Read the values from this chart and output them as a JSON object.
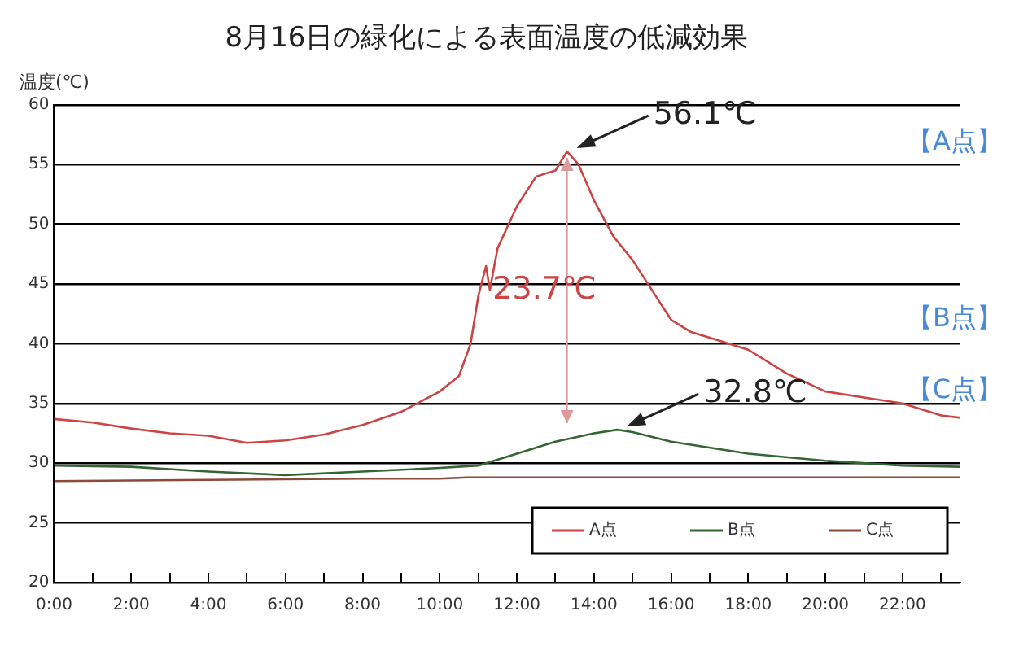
{
  "chart_data": {
    "type": "line",
    "title": "8月16日の緑化による表面温度の低減効果",
    "ylabel": "温度(℃)",
    "xlim": [
      0,
      23.5
    ],
    "xticks": [
      {
        "value": 0,
        "label": "0:00"
      },
      {
        "value": 1,
        "label": null
      },
      {
        "value": 2,
        "label": "2:00"
      },
      {
        "value": 3,
        "label": null
      },
      {
        "value": 4,
        "label": "4:00"
      },
      {
        "value": 5,
        "label": null
      },
      {
        "value": 6,
        "label": "6:00"
      },
      {
        "value": 7,
        "label": null
      },
      {
        "value": 8,
        "label": "8:00"
      },
      {
        "value": 9,
        "label": null
      },
      {
        "value": 10,
        "label": "10:00"
      },
      {
        "value": 11,
        "label": null
      },
      {
        "value": 12,
        "label": "12:00"
      },
      {
        "value": 13,
        "label": null
      },
      {
        "value": 14,
        "label": "14:00"
      },
      {
        "value": 15,
        "label": null
      },
      {
        "value": 16,
        "label": "16:00"
      },
      {
        "value": 17,
        "label": null
      },
      {
        "value": 18,
        "label": "18:00"
      },
      {
        "value": 19,
        "label": null
      },
      {
        "value": 20,
        "label": "20:00"
      },
      {
        "value": 21,
        "label": null
      },
      {
        "value": 22,
        "label": "22:00"
      },
      {
        "value": 23,
        "label": null
      }
    ],
    "ylim": [
      20,
      60
    ],
    "yticks": [
      20,
      25,
      30,
      35,
      40,
      45,
      50,
      55,
      60
    ],
    "grid": "y",
    "legend": "bottom right",
    "marker": "none",
    "series": [
      {
        "name": "A点",
        "color": "#cc4444",
        "x": [
          0,
          1,
          2,
          3,
          4,
          5,
          6,
          7,
          8,
          9,
          10,
          10.5,
          10.8,
          11,
          11.2,
          11.3,
          11.5,
          12,
          12.5,
          13,
          13.3,
          13.6,
          14,
          14.5,
          15,
          15.5,
          16,
          16.5,
          17,
          18,
          19,
          20,
          21,
          22,
          23,
          23.5
        ],
        "values": [
          33.7,
          33.4,
          32.9,
          32.5,
          32.3,
          31.7,
          31.9,
          32.4,
          33.2,
          34.3,
          36,
          37.3,
          40,
          44,
          46.5,
          44.5,
          48,
          51.5,
          54,
          54.5,
          56.1,
          55,
          52,
          49,
          47,
          44.5,
          42,
          41,
          40.5,
          39.5,
          37.5,
          36,
          35.5,
          35,
          34,
          33.8
        ]
      },
      {
        "name": "B点",
        "color": "#336633",
        "x": [
          0,
          2,
          4,
          6,
          8,
          10,
          11,
          12,
          13,
          14,
          14.6,
          15,
          16,
          18,
          20,
          22,
          23.5
        ],
        "values": [
          29.8,
          29.7,
          29.3,
          29,
          29.3,
          29.6,
          29.8,
          30.8,
          31.8,
          32.5,
          32.8,
          32.6,
          31.8,
          30.8,
          30.2,
          29.8,
          29.7
        ]
      },
      {
        "name": "C点",
        "color": "#8b4a3a",
        "x": [
          0,
          4,
          8,
          10,
          10.7,
          12,
          16,
          20,
          23.5
        ],
        "values": [
          28.5,
          28.6,
          28.7,
          28.7,
          28.8,
          28.8,
          28.8,
          28.8,
          28.8
        ]
      }
    ],
    "annotations": [
      {
        "text": "56.1℃",
        "x": 13.3,
        "y": 56.1
      },
      "23.7℃",
      {
        "text": "32.8℃",
        "x": 14.6,
        "y": 32.8
      },
      "【A点】",
      "【B点】",
      "【C点】"
    ]
  }
}
